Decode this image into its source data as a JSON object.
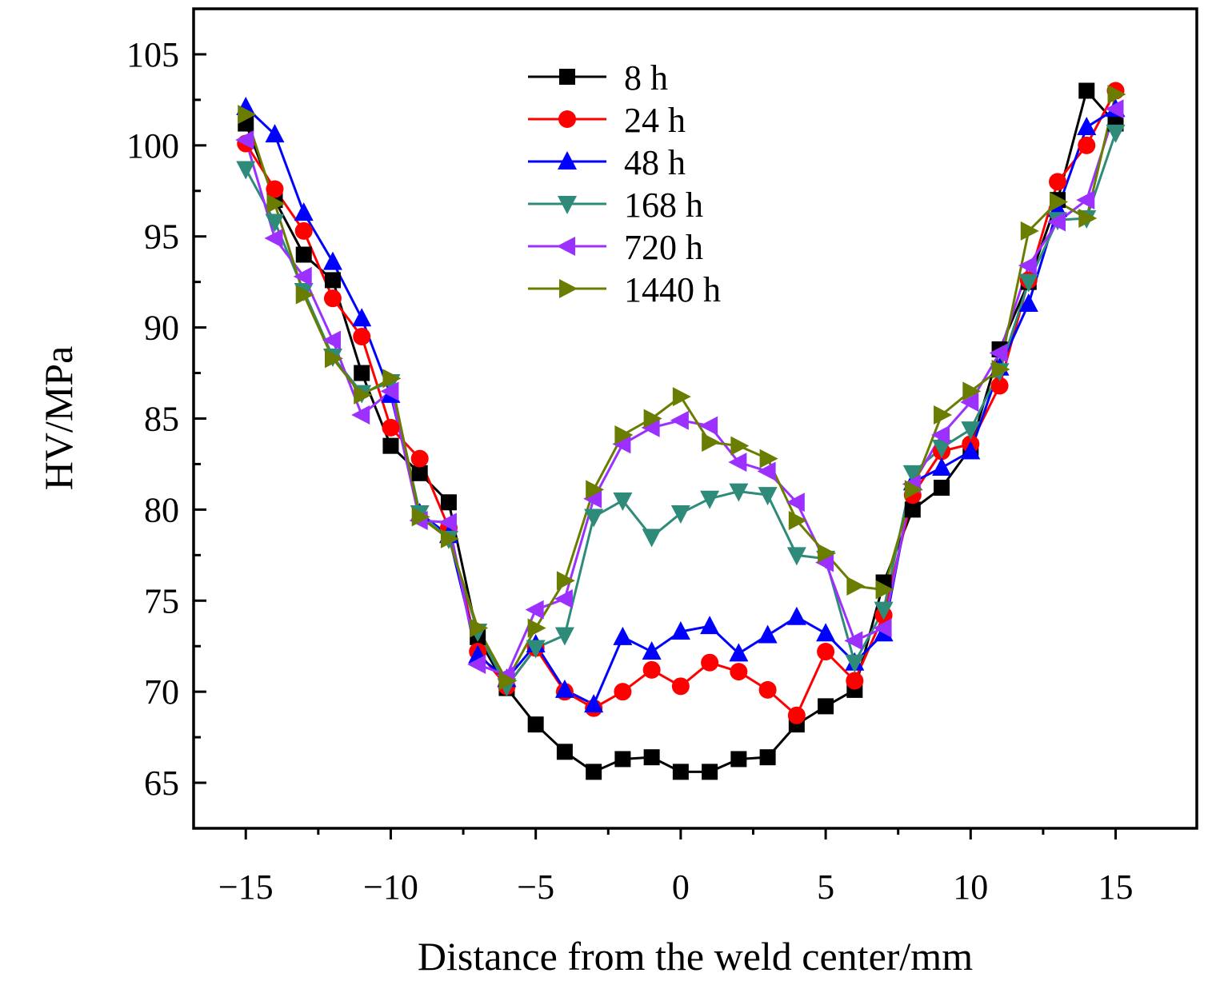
{
  "chart_data": {
    "type": "line",
    "xlabel": "Distance from the weld center/mm",
    "ylabel": "HV/MPa",
    "xlim": [
      -16.8,
      17.8
    ],
    "ylim": [
      62.5,
      107.5
    ],
    "xticks": [
      "−15",
      "−10",
      "−5",
      "0",
      "5",
      "10",
      "15"
    ],
    "xtick_values": [
      -15,
      -10,
      -5,
      0,
      5,
      10,
      15
    ],
    "yticks": [
      "65",
      "70",
      "75",
      "80",
      "85",
      "90",
      "95",
      "100",
      "105"
    ],
    "ytick_values": [
      65,
      70,
      75,
      80,
      85,
      90,
      95,
      100,
      105
    ],
    "legend_position": "top-center",
    "x": [
      -15,
      -14,
      -13,
      -12,
      -11,
      -10,
      -9,
      -8,
      -7,
      -6,
      -5,
      -4,
      -3,
      -2,
      -1,
      0,
      1,
      2,
      3,
      4,
      5,
      6,
      7,
      8,
      9,
      10,
      11,
      12,
      13,
      14,
      15
    ],
    "series": [
      {
        "name": "8 h",
        "color": "#000000",
        "marker": "square",
        "values": [
          101.2,
          97.0,
          94.0,
          92.6,
          87.5,
          83.5,
          82.0,
          80.4,
          73.0,
          70.2,
          68.2,
          66.7,
          65.6,
          66.3,
          66.4,
          65.6,
          65.6,
          66.3,
          66.4,
          68.2,
          69.2,
          70.1,
          76.0,
          80.0,
          81.2,
          83.4,
          88.8,
          92.5,
          97.0,
          103.0,
          101.2
        ]
      },
      {
        "name": "24 h",
        "color": "#ff0000",
        "marker": "circle",
        "values": [
          100.1,
          97.6,
          95.3,
          91.6,
          89.5,
          84.5,
          82.8,
          79.0,
          72.2,
          70.3,
          72.4,
          70.0,
          69.1,
          70.0,
          71.2,
          70.3,
          71.6,
          71.1,
          70.1,
          68.7,
          72.2,
          70.6,
          74.2,
          80.8,
          83.2,
          83.6,
          86.8,
          92.6,
          98.0,
          100.0,
          103.0
        ]
      },
      {
        "name": "48 h",
        "color": "#0000ff",
        "marker": "triangle-up",
        "values": [
          102.1,
          100.6,
          96.3,
          93.6,
          90.5,
          86.3,
          79.8,
          78.6,
          72.0,
          70.7,
          72.6,
          70.1,
          69.3,
          73.0,
          72.2,
          73.3,
          73.6,
          72.1,
          73.1,
          74.1,
          73.2,
          71.6,
          73.2,
          81.5,
          82.3,
          83.2,
          87.8,
          91.3,
          96.5,
          101.0,
          102.0
        ]
      },
      {
        "name": "168 h",
        "color": "#2e8b7a",
        "marker": "triangle-down",
        "values": [
          98.7,
          95.8,
          92.0,
          88.4,
          86.4,
          87.0,
          79.8,
          78.4,
          73.3,
          70.3,
          72.4,
          73.1,
          79.6,
          80.5,
          78.5,
          79.8,
          80.6,
          81.0,
          80.8,
          77.5,
          77.3,
          71.6,
          74.5,
          82.0,
          83.4,
          84.4,
          87.6,
          92.5,
          95.9,
          96.0,
          100.7
        ]
      },
      {
        "name": "720 h",
        "color": "#9b30ff",
        "marker": "triangle-left",
        "values": [
          100.3,
          94.9,
          92.8,
          89.3,
          85.2,
          86.5,
          79.4,
          79.3,
          71.5,
          70.9,
          74.5,
          75.1,
          80.6,
          83.6,
          84.5,
          84.9,
          84.6,
          82.6,
          82.1,
          80.4,
          77.1,
          72.8,
          73.5,
          81.4,
          84.1,
          85.9,
          88.6,
          93.4,
          95.8,
          97.0,
          102.0
        ]
      },
      {
        "name": "1440 h",
        "color": "#6b7d00",
        "marker": "triangle-right",
        "values": [
          101.7,
          96.8,
          91.8,
          88.3,
          86.3,
          87.2,
          79.6,
          78.4,
          73.5,
          70.6,
          73.5,
          76.1,
          81.1,
          84.1,
          85.0,
          86.2,
          83.7,
          83.5,
          82.8,
          79.4,
          77.6,
          75.8,
          75.6,
          81.1,
          85.2,
          86.5,
          87.7,
          95.3,
          96.9,
          96.0,
          102.8
        ]
      }
    ]
  }
}
